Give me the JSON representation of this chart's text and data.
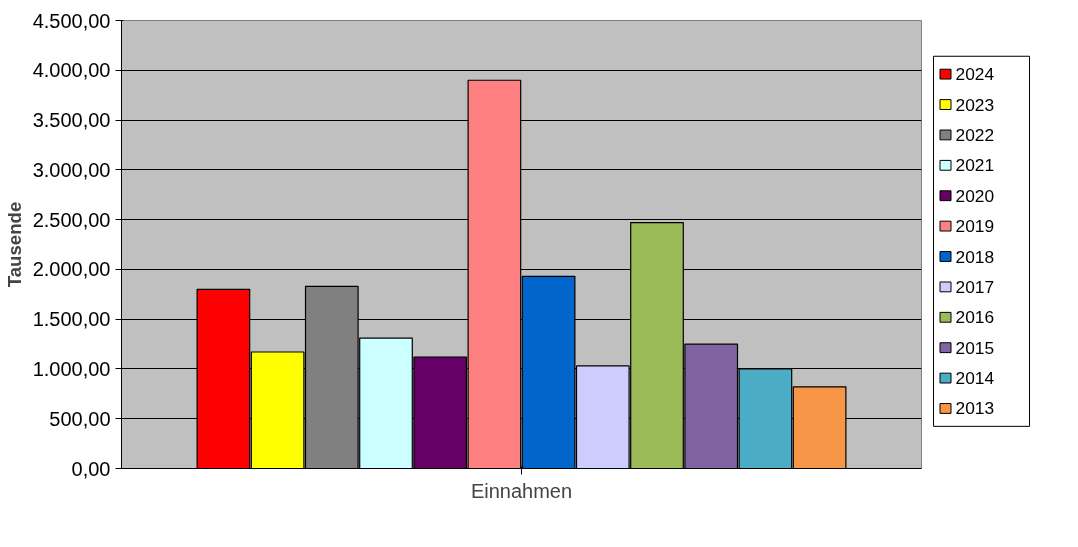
{
  "chart_data": {
    "type": "bar",
    "categories": [
      "Einnahmen"
    ],
    "ylabel": "Tausende",
    "ylim": [
      0,
      4500
    ],
    "yticks": [
      {
        "value": 0,
        "label": "0,00"
      },
      {
        "value": 500,
        "label": "500,00"
      },
      {
        "value": 1000,
        "label": "1.000,00"
      },
      {
        "value": 1500,
        "label": "1.500,00"
      },
      {
        "value": 2000,
        "label": "2.000,00"
      },
      {
        "value": 2500,
        "label": "2.500,00"
      },
      {
        "value": 3000,
        "label": "3.000,00"
      },
      {
        "value": 3500,
        "label": "3.500,00"
      },
      {
        "value": 4000,
        "label": "4.000,00"
      },
      {
        "value": 4500,
        "label": "4.500,00"
      }
    ],
    "grid": "y",
    "legend": "right",
    "series": [
      {
        "name": "2024",
        "color": "#ff0000",
        "values": [
          1800
        ]
      },
      {
        "name": "2023",
        "color": "#ffff00",
        "values": [
          1170
        ]
      },
      {
        "name": "2022",
        "color": "#808080",
        "values": [
          1830
        ]
      },
      {
        "name": "2021",
        "color": "#ccffff",
        "values": [
          1310
        ]
      },
      {
        "name": "2020",
        "color": "#660066",
        "values": [
          1120
        ]
      },
      {
        "name": "2019",
        "color": "#ff8080",
        "values": [
          3900
        ]
      },
      {
        "name": "2018",
        "color": "#0066cc",
        "values": [
          1930
        ]
      },
      {
        "name": "2017",
        "color": "#ccccff",
        "values": [
          1030
        ]
      },
      {
        "name": "2016",
        "color": "#9bbb59",
        "values": [
          2470
        ]
      },
      {
        "name": "2015",
        "color": "#8064a2",
        "values": [
          1250
        ]
      },
      {
        "name": "2014",
        "color": "#4bacc6",
        "values": [
          1000
        ]
      },
      {
        "name": "2013",
        "color": "#f79646",
        "values": [
          820
        ]
      }
    ]
  }
}
